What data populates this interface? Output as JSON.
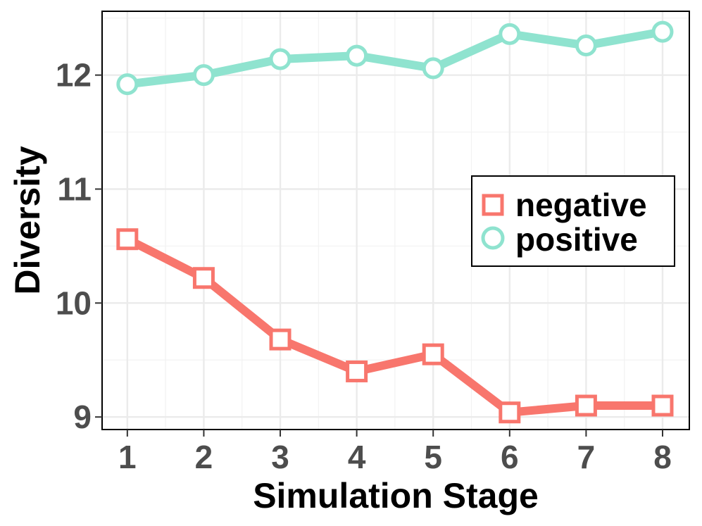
{
  "chart_data": {
    "type": "line",
    "title": "",
    "xlabel": "Simulation Stage",
    "ylabel": "Diversity",
    "x": [
      1,
      2,
      3,
      4,
      5,
      6,
      7,
      8
    ],
    "xlim": [
      0.67,
      8.35
    ],
    "ylim": [
      8.89,
      12.56
    ],
    "yticks": [
      9,
      10,
      11,
      12
    ],
    "grid": true,
    "legend_position": "right",
    "series": [
      {
        "name": "negative",
        "color": "#F8766D",
        "marker": "square",
        "values": [
          10.56,
          10.22,
          9.68,
          9.4,
          9.55,
          9.04,
          9.1,
          9.1
        ]
      },
      {
        "name": "positive",
        "color": "#8FE3CF",
        "marker": "circle",
        "values": [
          11.92,
          12.0,
          12.14,
          12.17,
          12.06,
          12.36,
          12.26,
          12.38
        ]
      }
    ]
  }
}
